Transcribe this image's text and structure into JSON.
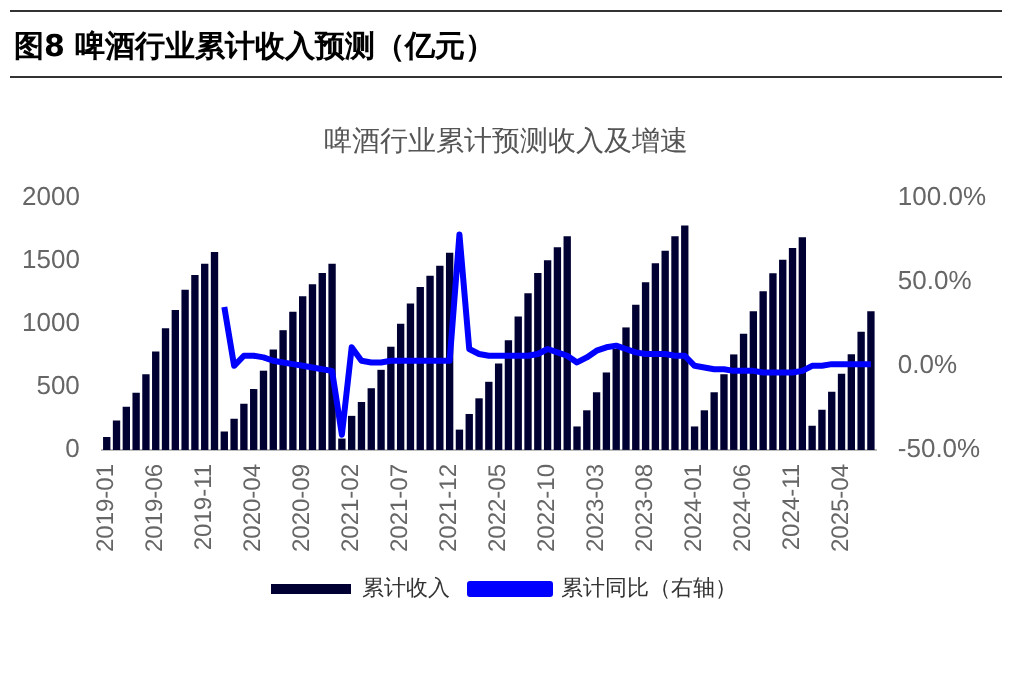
{
  "chart_data": {
    "type": "bar",
    "title": "图8 啤酒行业累计收入预测（亿元）",
    "subtitle": "啤酒行业累计预测收入及增速",
    "categories": [
      "2019-01",
      null,
      null,
      null,
      null,
      "2019-06",
      null,
      null,
      null,
      null,
      "2019-11",
      null,
      null,
      null,
      null,
      "2020-04",
      null,
      null,
      null,
      null,
      "2020-09",
      null,
      null,
      null,
      null,
      "2021-02",
      null,
      null,
      null,
      null,
      "2021-07",
      null,
      null,
      null,
      null,
      "2021-12",
      null,
      null,
      null,
      null,
      "2022-05",
      null,
      null,
      null,
      null,
      "2022-10",
      null,
      null,
      null,
      null,
      "2023-03",
      null,
      null,
      null,
      null,
      "2023-08",
      null,
      null,
      null,
      null,
      "2024-01",
      null,
      null,
      null,
      null,
      "2024-06",
      null,
      null,
      null,
      null,
      "2024-11",
      null,
      null,
      null,
      null,
      "2025-04",
      null,
      null,
      null
    ],
    "series": [
      {
        "name": "累计收入",
        "color": "#000033",
        "values": [
          102,
          234,
          343,
          453,
          599,
          781,
          964,
          1110,
          1270,
          1387,
          1475,
          1569,
          146,
          248,
          365,
          482,
          628,
          796,
          949,
          1095,
          1219,
          1314,
          1402,
          1475,
          90,
          270,
          380,
          489,
          635,
          818,
          1000,
          1161,
          1292,
          1380,
          1460,
          1562,
          161,
          285,
          409,
          540,
          686,
          869,
          1058,
          1241,
          1402,
          1504,
          1606,
          1694,
          186,
          314,
          457,
          614,
          800,
          971,
          1150,
          1329,
          1479,
          1579,
          1693,
          1779,
          186,
          314,
          457,
          600,
          757,
          921,
          1100,
          1257,
          1400,
          1507,
          1600,
          1686,
          191,
          319,
          461,
          603,
          759,
          936,
          1099
        ]
      },
      {
        "name": "累计同比（右轴）",
        "type": "line",
        "axis": "y2",
        "color": "#0000ff",
        "values": [
          null,
          null,
          null,
          null,
          null,
          null,
          null,
          null,
          null,
          null,
          null,
          null,
          35,
          0,
          6,
          6,
          5,
          3,
          2,
          1,
          0,
          -1,
          -2,
          -3,
          -41,
          11,
          3,
          2,
          2,
          3,
          3,
          3,
          3,
          3,
          3,
          3,
          78,
          10,
          7,
          6,
          6,
          6,
          6,
          6,
          7,
          10,
          8,
          6,
          2,
          5,
          9,
          11,
          12,
          10,
          8,
          7,
          7,
          7,
          6,
          6,
          0,
          -1,
          -2,
          -2,
          -3,
          -3,
          -3,
          -4,
          -4,
          -4,
          -4,
          -3,
          0,
          0,
          1,
          1,
          1,
          1,
          1
        ]
      }
    ],
    "ylim": [
      0,
      2000
    ],
    "yticks": [
      0,
      500,
      1000,
      1500,
      2000
    ],
    "y2lim": [
      -50,
      100
    ],
    "y2ticks": [
      {
        "value": -50,
        "label": "-50.0%"
      },
      {
        "value": 0,
        "label": "0.0%"
      },
      {
        "value": 50,
        "label": "50.0%"
      },
      {
        "value": 100,
        "label": "100.0%"
      }
    ],
    "legend": "bottom",
    "grid": false
  }
}
